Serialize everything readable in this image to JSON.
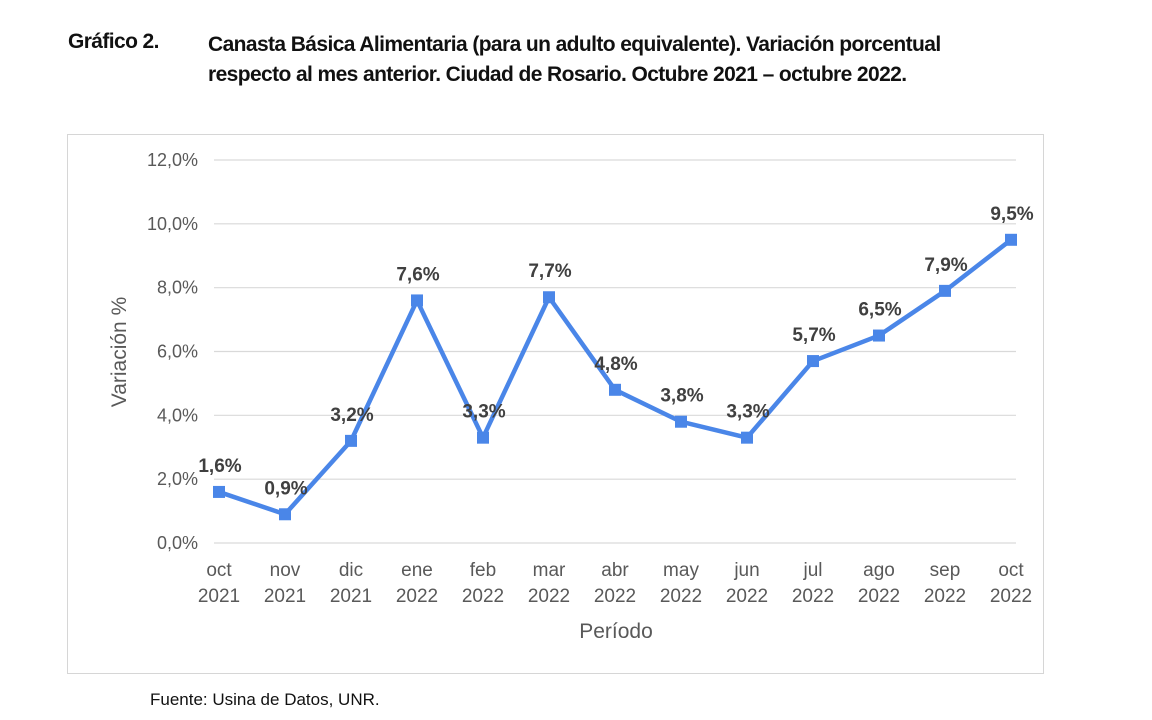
{
  "figure": {
    "label": "Gráfico 2.",
    "title_line1": "Canasta Básica Alimentaria (para un adulto equivalente). Variación porcentual",
    "title_line2": "respecto al mes anterior. Ciudad de Rosario. Octubre 2021 – octubre 2022.",
    "source": "Fuente: Usina de Datos, UNR."
  },
  "chart_data": {
    "type": "line",
    "title": "",
    "xlabel": "Período",
    "ylabel": "Variación %",
    "categories": [
      [
        "oct",
        "2021"
      ],
      [
        "nov",
        "2021"
      ],
      [
        "dic",
        "2021"
      ],
      [
        "ene",
        "2022"
      ],
      [
        "feb",
        "2022"
      ],
      [
        "mar",
        "2022"
      ],
      [
        "abr",
        "2022"
      ],
      [
        "may",
        "2022"
      ],
      [
        "jun",
        "2022"
      ],
      [
        "jul",
        "2022"
      ],
      [
        "ago",
        "2022"
      ],
      [
        "sep",
        "2022"
      ],
      [
        "oct",
        "2022"
      ]
    ],
    "values": [
      1.6,
      0.9,
      3.2,
      7.6,
      3.3,
      7.7,
      4.8,
      3.8,
      3.3,
      5.7,
      6.5,
      7.9,
      9.5
    ],
    "data_labels": [
      "1,6%",
      "0,9%",
      "3,2%",
      "7,6%",
      "3,3%",
      "7,7%",
      "4,8%",
      "3,8%",
      "3,3%",
      "5,7%",
      "6,5%",
      "7,9%",
      "9,5%"
    ],
    "ylim": [
      0,
      12
    ],
    "yticks": [
      0,
      2,
      4,
      6,
      8,
      10,
      12
    ],
    "ytick_labels": [
      "0,0%",
      "2,0%",
      "4,0%",
      "6,0%",
      "8,0%",
      "10,0%",
      "12,0%"
    ],
    "grid": true,
    "legend": "none",
    "series_color": "#4a86e8",
    "grid_color": "#d9d9d9",
    "tick_label_color": "#595959",
    "data_label_color": "#404040"
  }
}
